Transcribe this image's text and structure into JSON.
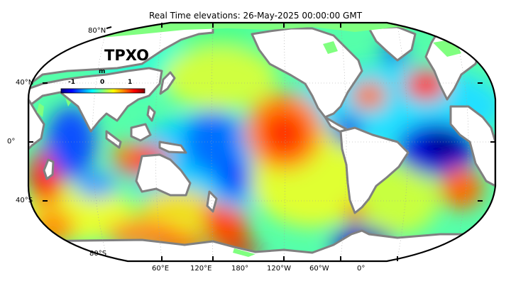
{
  "title": "Real Time elevations: 26-May-2025 00:00:00 GMT",
  "product": "TPXO",
  "colorbar": {
    "unit": "m",
    "ticks": [
      "-1",
      "0",
      "1"
    ],
    "colors": [
      "#00007f",
      "#0000ff",
      "#0080ff",
      "#00ffff",
      "#80ff80",
      "#ffff00",
      "#ff8000",
      "#ff0000",
      "#7f0000"
    ]
  },
  "map": {
    "projection": "Robinson",
    "lat_labels": [
      "80°N",
      "40°N",
      "0°",
      "40°S",
      "80°S"
    ],
    "lon_labels": [
      "60°E",
      "120°E",
      "180°",
      "120°W",
      "60°W",
      "0°"
    ],
    "land_color": "#ffffff",
    "coast_color": "#808080",
    "ice_color": "#80ff80"
  }
}
